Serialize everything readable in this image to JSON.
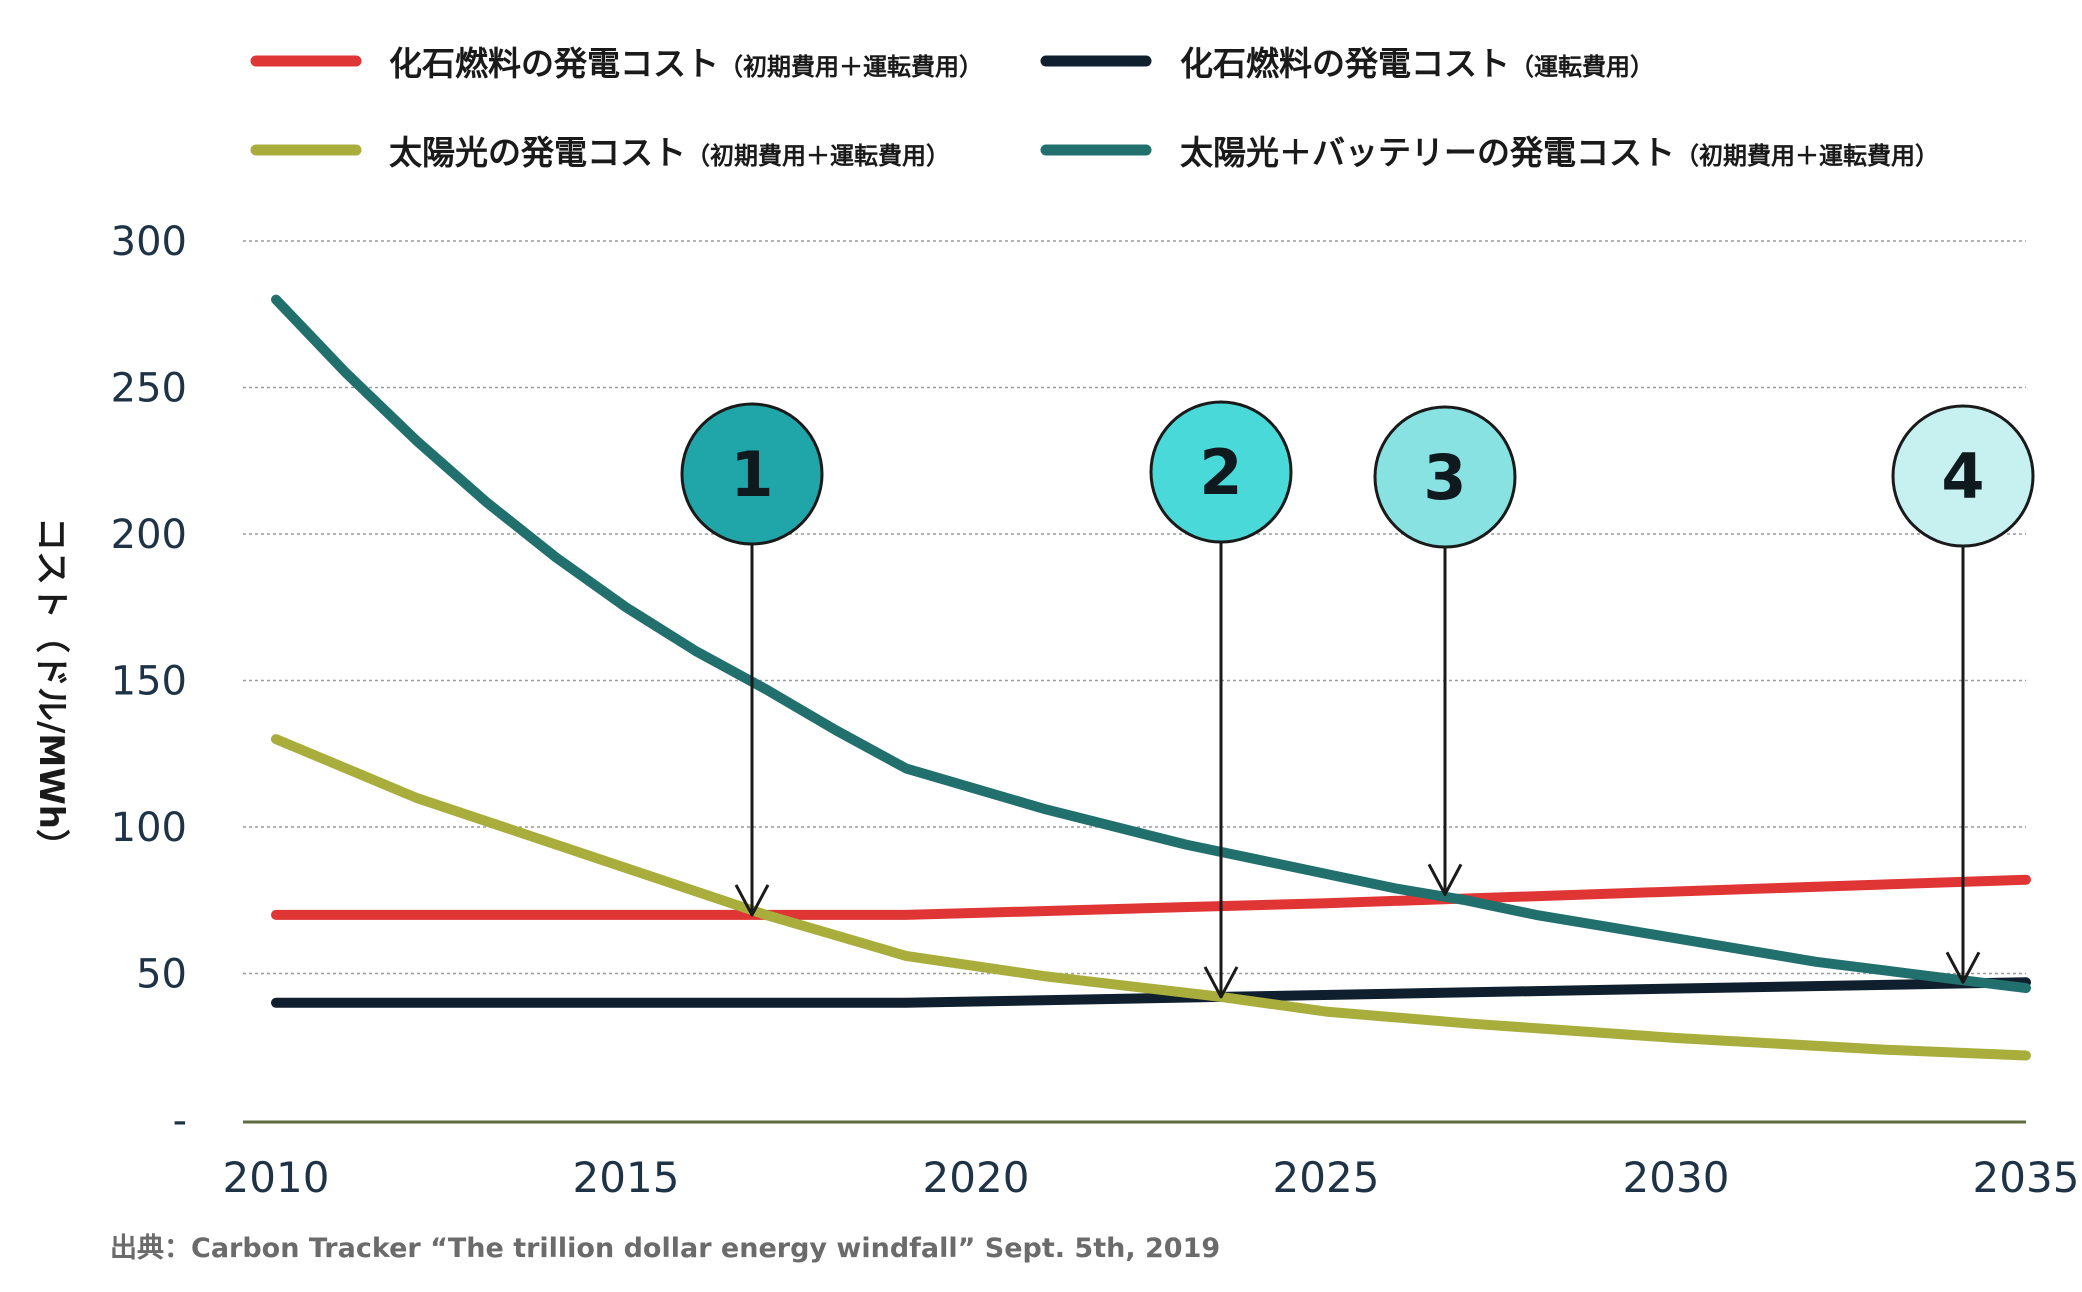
{
  "chart_data": {
    "type": "line",
    "xlabel": "",
    "ylabel": "コスト（ドル/MWh）",
    "xlim": [
      2010,
      2035
    ],
    "ylim": [
      0,
      300
    ],
    "x_ticks": [
      "2010",
      "2015",
      "2020",
      "2025",
      "2030",
      "2035"
    ],
    "y_ticks": [
      "-",
      "50",
      "100",
      "150",
      "200",
      "250",
      "300"
    ],
    "grid": true,
    "legend_position": "top",
    "series": [
      {
        "name": "化石燃料の発電コスト",
        "name_note": "（初期費用＋運転費用）",
        "color": "#e03535",
        "x": [
          2010,
          2019,
          2025,
          2030,
          2035
        ],
        "y": [
          70,
          70,
          74,
          78,
          82
        ]
      },
      {
        "name": "化石燃料の発電コスト",
        "name_note": "（運転費用）",
        "color": "#0f1f2d",
        "x": [
          2010,
          2019,
          2023.5,
          2028,
          2035
        ],
        "y": [
          40,
          40,
          42,
          44,
          47
        ]
      },
      {
        "name": "太陽光の発電コスト",
        "name_note": "（初期費用＋運転費用）",
        "color": "#a8ad3c",
        "x": [
          2010,
          2012,
          2015,
          2017,
          2019,
          2021,
          2023.5,
          2025,
          2027,
          2030,
          2033,
          2035
        ],
        "y": [
          130,
          110,
          86,
          70,
          56,
          49,
          42,
          37,
          33,
          28,
          24,
          22
        ]
      },
      {
        "name": "太陽光＋バッテリーの発電コスト",
        "name_note": "（初期費用＋運転費用）",
        "color": "#22706d",
        "x": [
          2010,
          2011,
          2012,
          2013,
          2014,
          2015,
          2016,
          2017,
          2018,
          2019,
          2020,
          2021,
          2022,
          2023,
          2024,
          2025,
          2026,
          2027,
          2028,
          2029,
          2030,
          2031,
          2032,
          2033,
          2034,
          2035
        ],
        "y": [
          280,
          255,
          232,
          211,
          192,
          175,
          160,
          147,
          133,
          120,
          113,
          106,
          100,
          94,
          89,
          84,
          79,
          75,
          70,
          66,
          62,
          58,
          54,
          51,
          48,
          45
        ]
      }
    ],
    "markers": [
      {
        "label": "1",
        "x": 2016.8,
        "y_target": 70,
        "color": "#20a5a8"
      },
      {
        "label": "2",
        "x": 2023.5,
        "y_target": 42,
        "color": "#4ad9d9"
      },
      {
        "label": "3",
        "x": 2026.7,
        "y_target": 77,
        "color": "#88e2e2"
      },
      {
        "label": "4",
        "x": 2034.1,
        "y_target": 47,
        "color": "#c6f1f0"
      }
    ],
    "source": "出典：Carbon Tracker “The trillion dollar energy windfall” Sept. 5th, 2019"
  }
}
